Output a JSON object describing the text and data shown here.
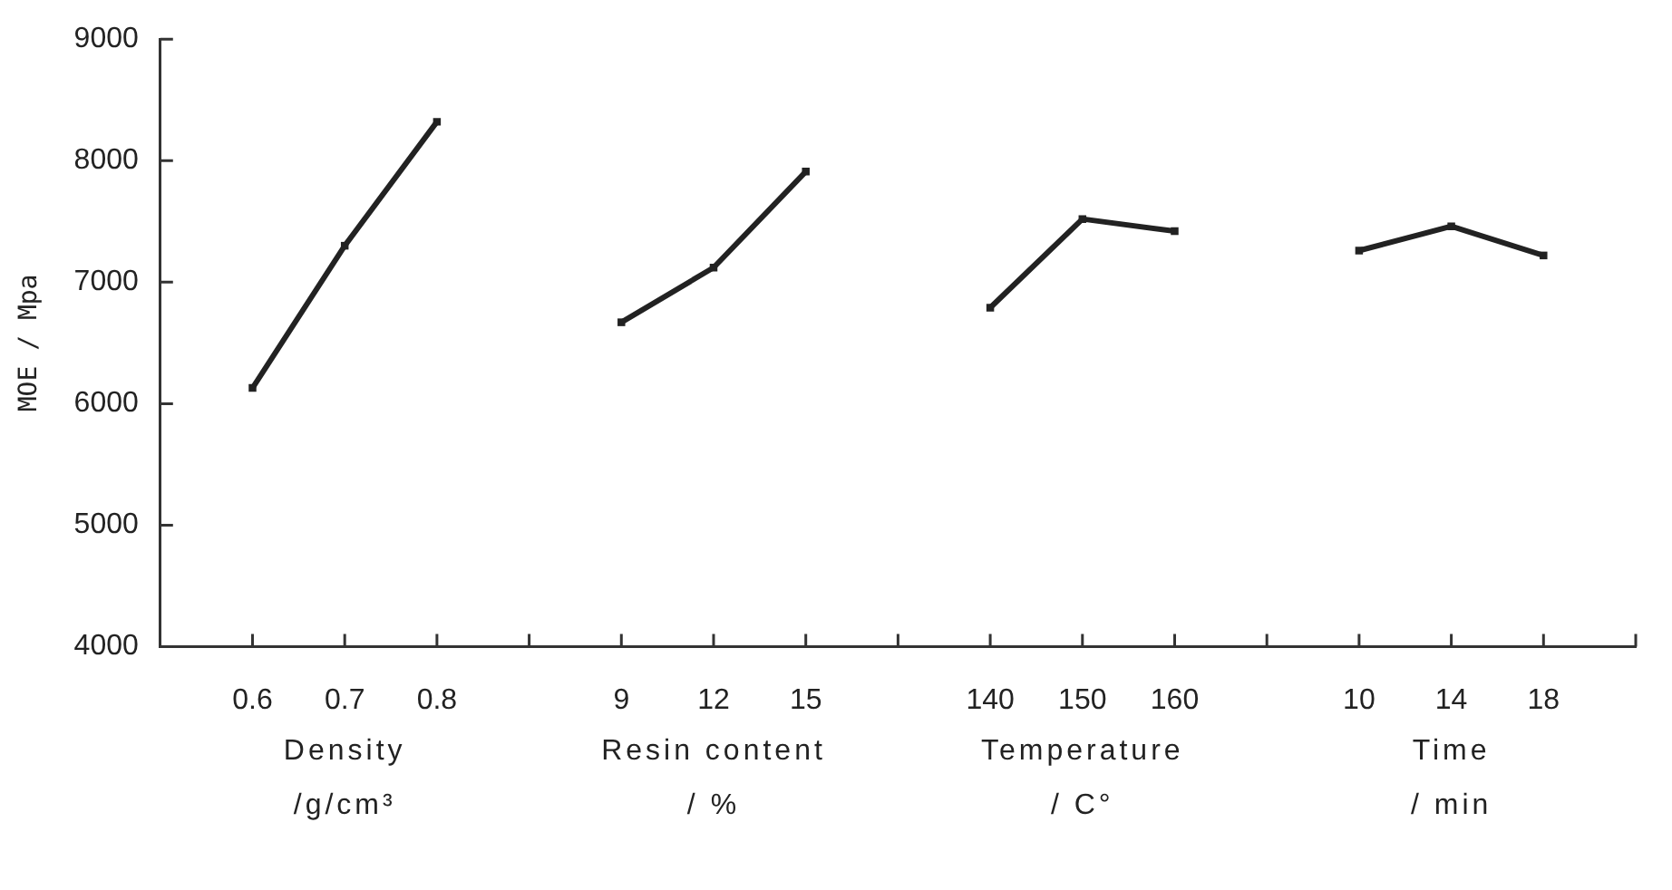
{
  "chart_data": {
    "type": "line",
    "ylabel": "MOE / Mpa",
    "categories": [
      null,
      "0.6",
      "0.7",
      "0.8",
      null,
      "9",
      "12",
      "15",
      null,
      "140",
      "150",
      "160",
      null,
      "10",
      "14",
      "18",
      null
    ],
    "series": [
      {
        "color": "#222222",
        "values": [
          null,
          6130,
          7300,
          8320,
          null,
          null,
          null,
          null,
          null,
          null,
          null,
          null,
          null,
          null,
          null,
          null,
          null
        ]
      },
      {
        "color": "#222222",
        "values": [
          null,
          null,
          null,
          null,
          null,
          6670,
          7120,
          7910,
          null,
          null,
          null,
          null,
          null,
          null,
          null,
          null,
          null
        ]
      },
      {
        "color": "#222222",
        "values": [
          null,
          null,
          null,
          null,
          null,
          null,
          null,
          null,
          null,
          6790,
          7520,
          7420,
          null,
          null,
          null,
          null,
          null
        ]
      },
      {
        "color": "#222222",
        "values": [
          null,
          null,
          null,
          null,
          null,
          null,
          null,
          null,
          null,
          null,
          null,
          null,
          null,
          7260,
          7460,
          7220,
          null
        ]
      }
    ],
    "ylim": [
      4000,
      9000
    ],
    "yticks": [
      4000,
      5000,
      6000,
      7000,
      8000,
      9000
    ],
    "annotations": [
      "Density\n/g/cm³",
      "Resin content\n/ %",
      "Temperature\n/ C°",
      "Time\n/ min"
    ],
    "marker": "square",
    "grid": false,
    "legend": false
  }
}
